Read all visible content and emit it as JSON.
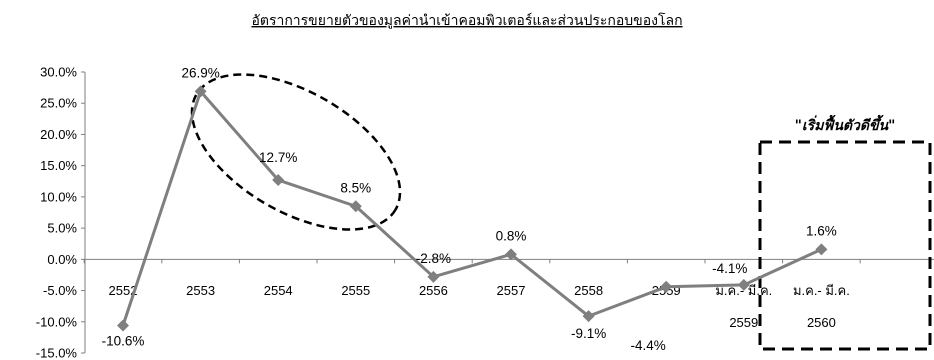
{
  "chart_data": {
    "type": "line",
    "title": "อัตราการขยายตัวของมูลค่านำเข้าคอมพิวเตอร์และส่วนประกอบของโลก",
    "categories": [
      {
        "line1": "2552",
        "line2": ""
      },
      {
        "line1": "2553",
        "line2": ""
      },
      {
        "line1": "2554",
        "line2": ""
      },
      {
        "line1": "2555",
        "line2": ""
      },
      {
        "line1": "2556",
        "line2": ""
      },
      {
        "line1": "2557",
        "line2": ""
      },
      {
        "line1": "2558",
        "line2": ""
      },
      {
        "line1": "2559",
        "line2": ""
      },
      {
        "line1": "ม.ค.- มี.ค.",
        "line2": "2559"
      },
      {
        "line1": "ม.ค.- มี.ค.",
        "line2": "2560"
      }
    ],
    "values": [
      -10.6,
      26.9,
      12.7,
      8.5,
      -2.8,
      0.8,
      -9.1,
      -4.4,
      -4.1,
      1.6
    ],
    "data_labels": [
      "-10.6%",
      "26.9%",
      "12.7%",
      "8.5%",
      "-2.8%",
      "0.8%",
      "-9.1%",
      "-4.4%",
      "-4.1%",
      "1.6%"
    ],
    "y_ticks": [
      "30.0%",
      "25.0%",
      "20.0%",
      "15.0%",
      "10.0%",
      "5.0%",
      "0.0%",
      "-5.0%",
      "-10.0%",
      "-15.0%"
    ],
    "ylim": [
      -15,
      30
    ],
    "grid": false,
    "legend": "none",
    "series_color": "#7f7f7f",
    "annotations": {
      "recovery_text": "\"เริ่มฟื้นตัวดีขึ้น\""
    }
  }
}
